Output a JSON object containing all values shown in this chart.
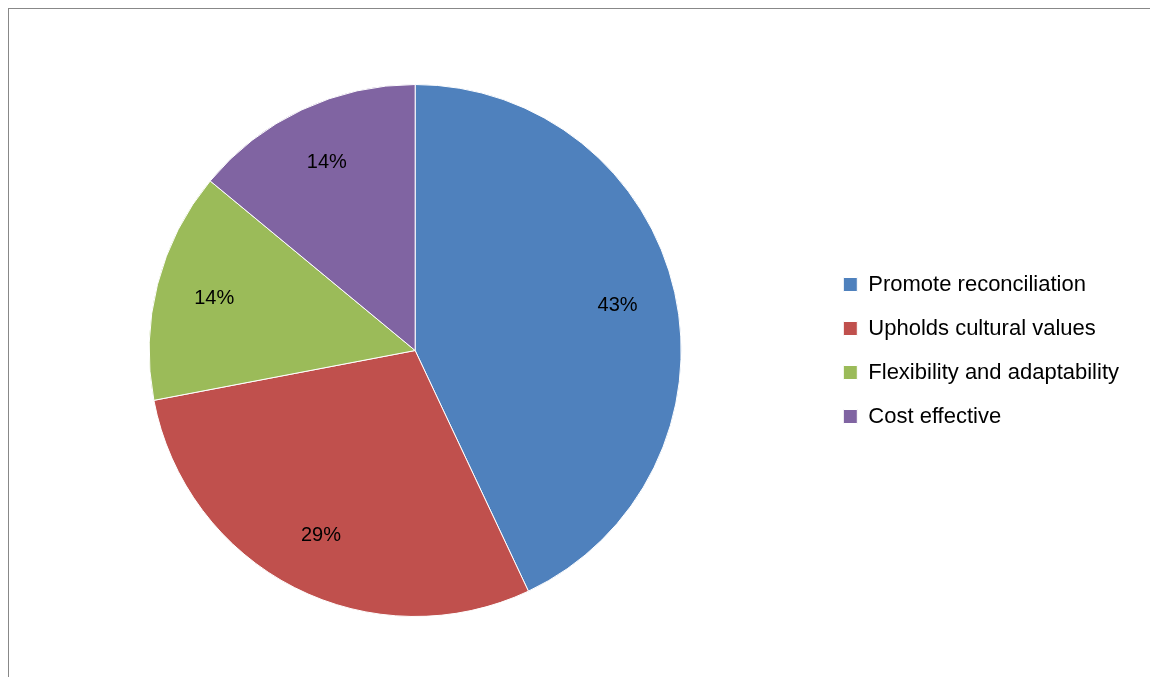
{
  "chart_data": {
    "type": "pie",
    "categories": [
      "Promote reconciliation",
      "Upholds cultural values",
      "Flexibility and adaptability",
      "Cost effective"
    ],
    "values": [
      43,
      29,
      14,
      14
    ],
    "colors": [
      "#4f81bd",
      "#c0504d",
      "#9bbb59",
      "#8064a2"
    ],
    "value_labels": [
      "43%",
      "29%",
      "14%",
      "14%"
    ],
    "legend": "right"
  }
}
